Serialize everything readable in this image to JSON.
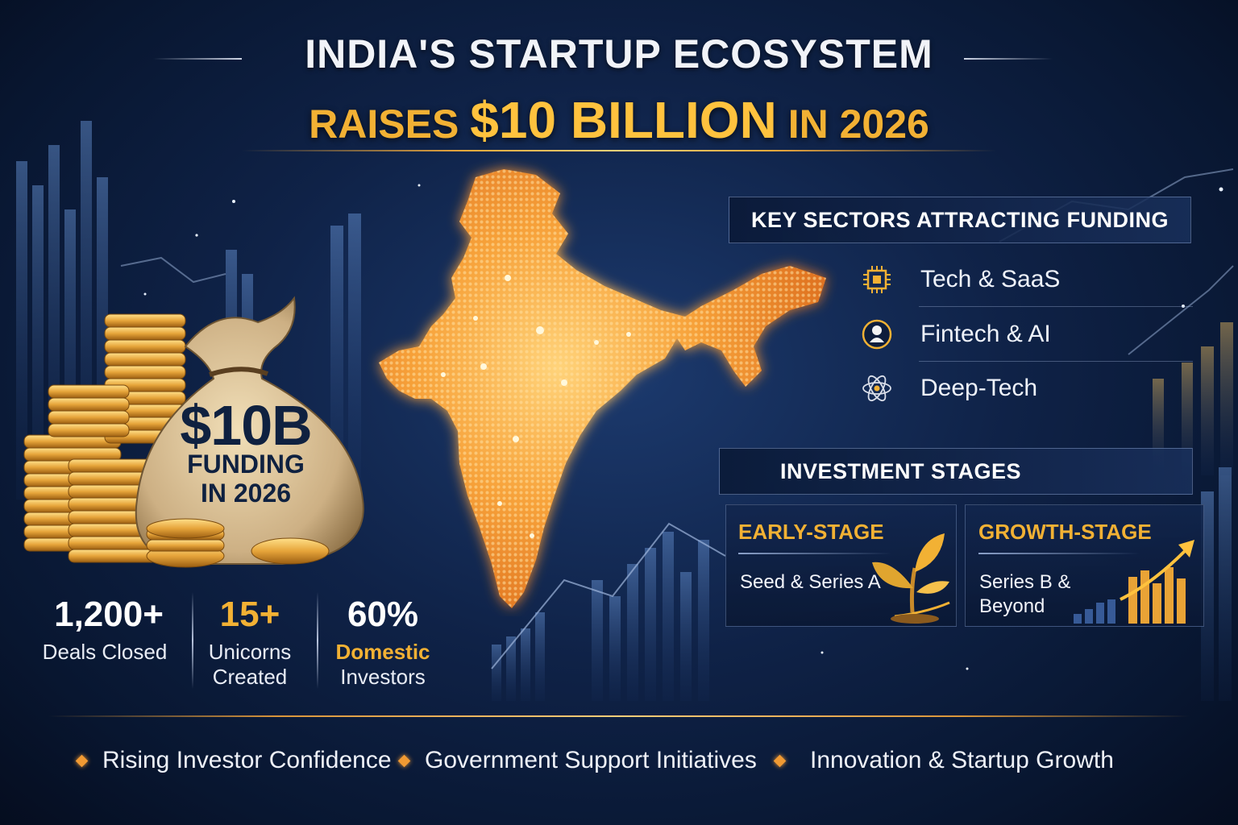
{
  "header": {
    "title_line1": "INDIA'S STARTUP ECOSYSTEM",
    "title_prefix": "RAISES",
    "title_amount": "$10 BILLION",
    "title_suffix": "IN 2026"
  },
  "money_bag": {
    "amount": "$10B",
    "line1": "FUNDING",
    "line2": "IN 2026"
  },
  "stats": [
    {
      "value": "1,200+",
      "label_line1": "Deals Closed",
      "label_line2": ""
    },
    {
      "value": "15+",
      "label_line1": "Unicorns",
      "label_line2": "Created"
    },
    {
      "value": "60%",
      "label_line1": "Domestic",
      "label_line2": "Investors"
    }
  ],
  "sectors": {
    "heading": "KEY SECTORS ATTRACTING FUNDING",
    "items": [
      {
        "label": "Tech & SaaS",
        "icon": "chip-icon"
      },
      {
        "label": "Fintech & AI",
        "icon": "robot-icon"
      },
      {
        "label": "Deep-Tech",
        "icon": "atom-icon"
      }
    ]
  },
  "stages": {
    "heading": "INVESTMENT STAGES",
    "early": {
      "title": "EARLY-STAGE",
      "desc": "Seed & Series A",
      "icon": "sprout-icon"
    },
    "growth": {
      "title": "GROWTH-STAGE",
      "desc_line1": "Series B &",
      "desc_line2": "Beyond",
      "icon": "rising-bars-icon"
    }
  },
  "bullets": [
    "Rising Investor Confidence",
    "Government Support Initiatives",
    "Innovation & Startup Growth"
  ],
  "colors": {
    "background": "#0f2247",
    "gold": "#f2b134",
    "map_orange": "#f39a2c",
    "accent_orange": "#f19a33"
  }
}
